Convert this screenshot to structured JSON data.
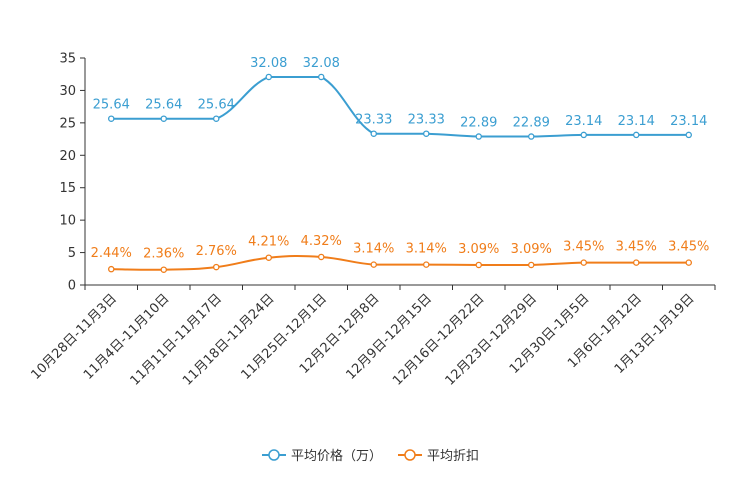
{
  "chart_data": {
    "type": "line",
    "title": "",
    "xlabel": "",
    "ylabel": "",
    "ylim": [
      0,
      35
    ],
    "yticks": [
      0,
      5,
      10,
      15,
      20,
      25,
      30,
      35
    ],
    "grid": false,
    "legend_position": "bottom-center",
    "categories": [
      "10月28日-11月3日",
      "11月4日-11月10日",
      "11月11日-11月17日",
      "11月18日-11月24日",
      "11月25日-12月1日",
      "12月2日-12月8日",
      "12月9日-12月15日",
      "12月16日-12月22日",
      "12月23日-12月29日",
      "12月30日-1月5日",
      "1月6日-1月12日",
      "1月13日-1月19日"
    ],
    "series": [
      {
        "name": "平均价格（万）",
        "color": "#3b9ed1",
        "values": [
          25.64,
          25.64,
          25.64,
          32.08,
          32.08,
          23.33,
          23.33,
          22.89,
          22.89,
          23.14,
          23.14,
          23.14
        ],
        "labels": [
          "25.64",
          "25.64",
          "25.64",
          "32.08",
          "32.08",
          "23.33",
          "23.33",
          "22.89",
          "22.89",
          "23.14",
          "23.14",
          "23.14"
        ]
      },
      {
        "name": "平均折扣",
        "color": "#f07d1a",
        "values": [
          2.44,
          2.36,
          2.76,
          4.21,
          4.32,
          3.14,
          3.14,
          3.09,
          3.09,
          3.45,
          3.45,
          3.45
        ],
        "labels": [
          "2.44%",
          "2.36%",
          "2.76%",
          "4.21%",
          "4.32%",
          "3.14%",
          "3.14%",
          "3.09%",
          "3.09%",
          "3.45%",
          "3.45%",
          "3.45%"
        ]
      }
    ]
  }
}
